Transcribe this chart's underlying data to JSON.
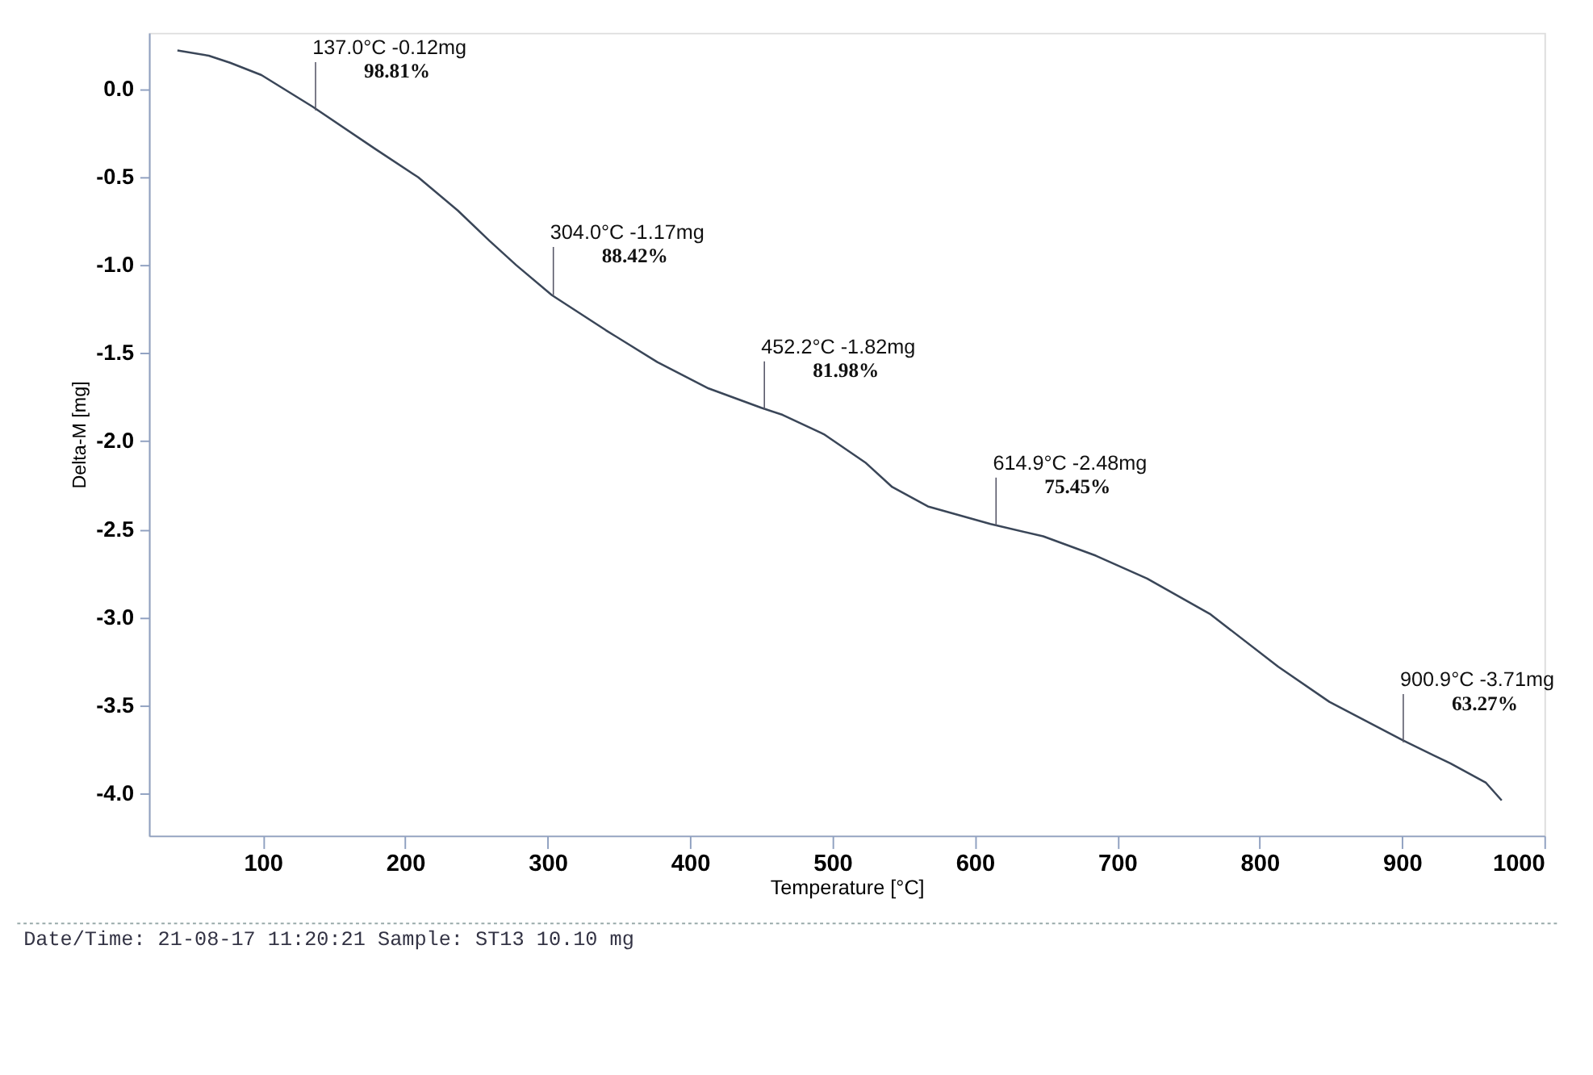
{
  "chart_data": {
    "type": "line",
    "xlabel": "Temperature [°C]",
    "ylabel": "Delta-M [mg]",
    "x": [
      40,
      62,
      77,
      99,
      135,
      179,
      209,
      237,
      259,
      278,
      303,
      341,
      377,
      413,
      450,
      465,
      494,
      523,
      542,
      567,
      611,
      648,
      685,
      721,
      765,
      813,
      849,
      901,
      934,
      959,
      970
    ],
    "series": [
      {
        "color": "#3a4658",
        "values": [
          0.22,
          0.19,
          0.15,
          0.08,
          -0.1,
          -0.34,
          -0.5,
          -0.69,
          -0.86,
          -1.0,
          -1.17,
          -1.37,
          -1.55,
          -1.7,
          -1.81,
          -1.85,
          -1.96,
          -2.12,
          -2.26,
          -2.37,
          -2.47,
          -2.54,
          -2.65,
          -2.78,
          -2.98,
          -3.28,
          -3.48,
          -3.7,
          -3.83,
          -3.94,
          -4.04
        ]
      }
    ],
    "xlim": [
      20,
      1000
    ],
    "ylim": [
      -4.24,
      0.32
    ],
    "xticks": [
      100,
      200,
      300,
      400,
      500,
      600,
      700,
      800,
      900,
      1000
    ],
    "yticks": [
      {
        "value": 0,
        "label": "0.0"
      },
      -0.5,
      {
        "value": -1,
        "label": "-1.0"
      },
      -1.5,
      {
        "value": -2,
        "label": "-2.0"
      },
      -2.5,
      {
        "value": -3,
        "label": "-3.0"
      },
      -3.5,
      {
        "value": -4,
        "label": "-4.0"
      }
    ],
    "grid": false,
    "legend": false,
    "marker": "none",
    "line_style": "solid",
    "annotations": [
      {
        "text": "137.0°C -0.12mg",
        "x": 137.0,
        "y": -0.12
      },
      {
        "text": "98.81%",
        "x": 137.0,
        "y": -0.12
      },
      {
        "text": "304.0°C -1.17mg",
        "x": 304.0,
        "y": -1.17
      },
      {
        "text": "88.42%",
        "x": 304.0,
        "y": -1.17
      },
      {
        "text": "452.2°C -1.82mg",
        "x": 452.2,
        "y": -1.82
      },
      {
        "text": "81.98%",
        "x": 452.2,
        "y": -1.82
      },
      {
        "text": "614.9°C -2.48mg",
        "x": 614.9,
        "y": -2.48
      },
      {
        "text": "75.45%",
        "x": 614.9,
        "y": -2.48
      },
      {
        "text": "900.9°C -3.71mg",
        "x": 900.9,
        "y": -3.71
      },
      {
        "text": "63.27%",
        "x": 900.9,
        "y": -3.71
      },
      "Date/Time: 21-08-17 11:20:21 Sample: ST13 10.10 mg"
    ]
  }
}
